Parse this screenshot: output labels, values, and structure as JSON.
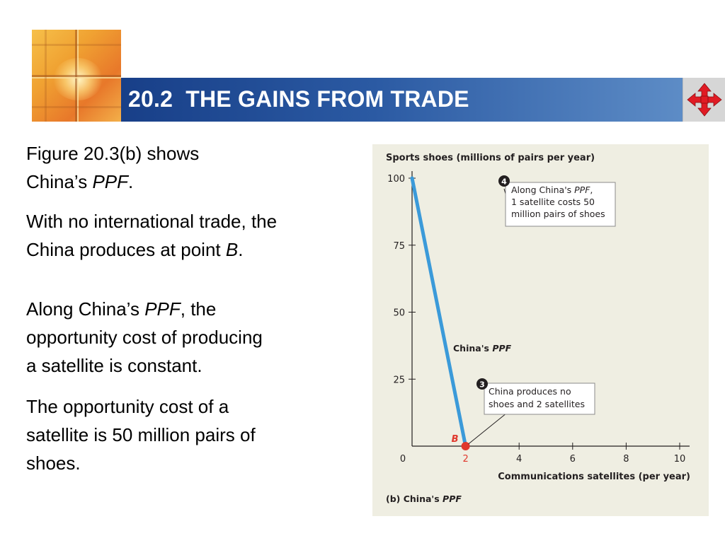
{
  "header": {
    "title": "20.2  THE GAINS FROM TRADE",
    "bar_color": "#1f4b94"
  },
  "text": {
    "p1": {
      "a": "Figure 20.3(b) shows",
      "b": "China’s ",
      "em": "PPF",
      "c": "."
    },
    "p2": {
      "a": "With no international trade, the",
      "b": "China produces at point ",
      "em": "B",
      "c": "."
    },
    "p3": {
      "a": "Along China’s ",
      "em": "PPF",
      "b": ", the",
      "c": "opportunity cost of producing",
      "d": "a satellite is constant."
    },
    "p4": {
      "a": "The opportunity cost of a",
      "b": "satellite is 50 million pairs of",
      "c": "shoes."
    }
  },
  "icons": {
    "nav": "four-way-arrows-icon",
    "logo": "window-cross-logo"
  },
  "chart_data": {
    "type": "line",
    "ylabel": "Sports shoes (millions of pairs per year)",
    "xlabel": "Communications satellites (per year)",
    "xlim": [
      0,
      10
    ],
    "ylim": [
      0,
      100
    ],
    "x_ticks": [
      "0",
      "2",
      "4",
      "6",
      "8",
      "10"
    ],
    "x_tick_values": [
      0,
      2,
      4,
      6,
      8,
      10
    ],
    "y_ticks": [
      "25",
      "50",
      "75",
      "100"
    ],
    "y_tick_values": [
      25,
      50,
      75,
      100
    ],
    "series": [
      {
        "name": "China's PPF",
        "name_plain": "China's ",
        "name_em": "PPF",
        "color": "#3b9ad9",
        "points": [
          {
            "x": 0,
            "y": 100
          },
          {
            "x": 2,
            "y": 0
          }
        ]
      }
    ],
    "point_b": {
      "label": "B",
      "x": 2,
      "y": 0,
      "color": "#e0382d"
    },
    "annotations": [
      {
        "badge": "4",
        "line1_plain": "Along China's ",
        "line1_em": "PPF",
        "line1_end": ",",
        "line2": "1 satellite costs 50",
        "line3": "million pairs of shoes"
      },
      {
        "badge": "3",
        "line1": "China produces no",
        "line2": "shoes and 2 satellites"
      }
    ],
    "caption_plain": "(b) China's ",
    "caption_em": "PPF",
    "accent_x_label_color": "#e0382d",
    "grid": false
  }
}
